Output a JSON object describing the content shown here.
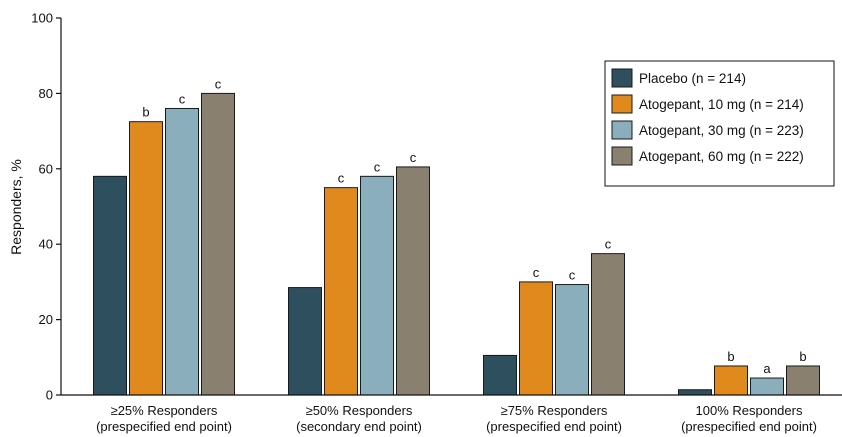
{
  "chart_data": {
    "type": "bar",
    "title": "",
    "xlabel": "",
    "ylabel": "Responders, %",
    "ylim": [
      0,
      100
    ],
    "yticks": [
      0,
      20,
      40,
      60,
      80,
      100
    ],
    "categories": [
      {
        "line1": "≥25% Responders",
        "line2": "(prespecified end point)"
      },
      {
        "line1": "≥50% Responders",
        "line2": "(secondary end point)"
      },
      {
        "line1": "≥75% Responders",
        "line2": "(prespecified end point)"
      },
      {
        "line1": "100% Responders",
        "line2": "(prespecified end point)"
      }
    ],
    "series": [
      {
        "name": "Placebo (n = 214)",
        "color": "#2d4f5e",
        "values": [
          58,
          28.5,
          10.5,
          1.4
        ],
        "sig": [
          "",
          "",
          "",
          ""
        ]
      },
      {
        "name": "Atogepant, 10 mg (n = 214)",
        "color": "#e08a1e",
        "values": [
          72.5,
          55,
          30,
          7.7
        ],
        "sig": [
          "b",
          "c",
          "c",
          "b"
        ]
      },
      {
        "name": "Atogepant, 30 mg (n = 223)",
        "color": "#8aaebb",
        "values": [
          76,
          58,
          29.3,
          4.5
        ],
        "sig": [
          "c",
          "c",
          "c",
          "a"
        ]
      },
      {
        "name": "Atogepant, 60 mg (n = 222)",
        "color": "#8a8070",
        "values": [
          80,
          60.5,
          37.5,
          7.7
        ],
        "sig": [
          "c",
          "c",
          "c",
          "b"
        ]
      }
    ],
    "legend_position": "top-right",
    "grid": false
  }
}
